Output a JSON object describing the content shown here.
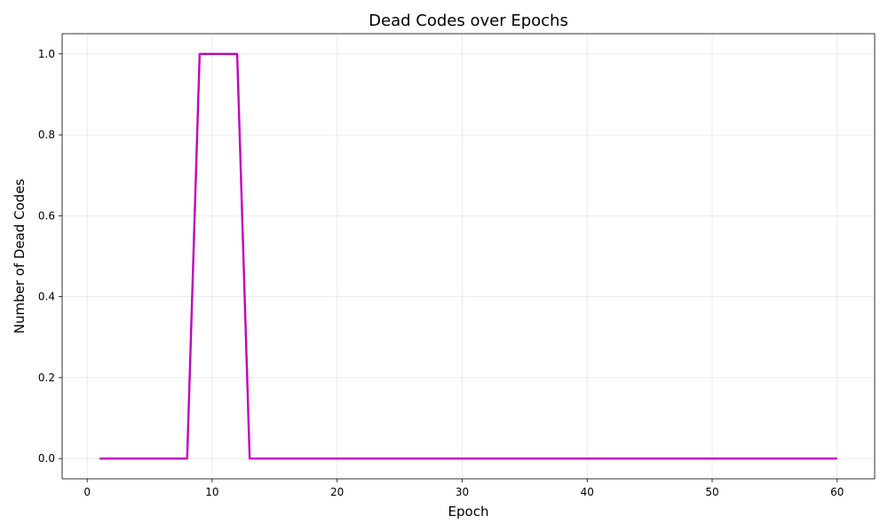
{
  "chart_data": {
    "type": "line",
    "title": "Dead Codes over Epochs",
    "xlabel": "Epoch",
    "ylabel": "Number of Dead Codes",
    "xlim": [
      -2,
      63
    ],
    "ylim": [
      -0.05,
      1.05
    ],
    "xticks": [
      0,
      10,
      20,
      30,
      40,
      50,
      60
    ],
    "xtick_labels": [
      "0",
      "10",
      "20",
      "30",
      "40",
      "50",
      "60"
    ],
    "yticks": [
      0.0,
      0.2,
      0.4,
      0.6,
      0.8,
      1.0
    ],
    "ytick_labels": [
      "0.0",
      "0.2",
      "0.4",
      "0.6",
      "0.8",
      "1.0"
    ],
    "grid": true,
    "legend": "none",
    "series": [
      {
        "color": "#c000c0",
        "x": [
          1,
          2,
          3,
          4,
          5,
          6,
          7,
          8,
          9,
          10,
          11,
          12,
          13,
          14,
          15,
          16,
          17,
          18,
          19,
          20,
          21,
          22,
          23,
          24,
          25,
          26,
          27,
          28,
          29,
          30,
          31,
          32,
          33,
          34,
          35,
          36,
          37,
          38,
          39,
          40,
          41,
          42,
          43,
          44,
          45,
          46,
          47,
          48,
          49,
          50,
          51,
          52,
          53,
          54,
          55,
          56,
          57,
          58,
          59,
          60
        ],
        "y": [
          0,
          0,
          0,
          0,
          0,
          0,
          0,
          0,
          1,
          1,
          1,
          1,
          0,
          0,
          0,
          0,
          0,
          0,
          0,
          0,
          0,
          0,
          0,
          0,
          0,
          0,
          0,
          0,
          0,
          0,
          0,
          0,
          0,
          0,
          0,
          0,
          0,
          0,
          0,
          0,
          0,
          0,
          0,
          0,
          0,
          0,
          0,
          0,
          0,
          0,
          0,
          0,
          0,
          0,
          0,
          0,
          0,
          0,
          0,
          0
        ]
      }
    ]
  }
}
